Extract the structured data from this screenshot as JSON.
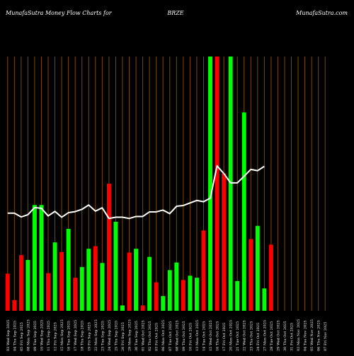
{
  "header": {
    "left": "MunafaSutra  Money Flow  Charts for",
    "center": "BRZE",
    "right": "MunafaSutra.com"
  },
  "colors": {
    "background": "#000000",
    "grid": "#7f4a00",
    "up": "#00ff00",
    "down": "#ff0000",
    "line": "#ffffff",
    "text": "#ffffff"
  },
  "chart_data": {
    "type": "bar",
    "title": "",
    "xlabel": "",
    "ylabel": "",
    "ylim": [
      0,
      100
    ],
    "categories": [
      "07 Fri Nov 2025",
      "06 Thu Nov 2025",
      "05 Wed Nov 2025",
      "04 Tue Nov 2025",
      "03 Mon Nov 2025",
      "31 Fri Oct 2025",
      "30 Thu Oct 2025",
      "29 Wed Oct 2025",
      "28 Tue Oct 2025",
      "27 Mon Oct 2025",
      "24 Fri Oct 2025",
      "23 Thu Oct 2025",
      "22 Wed Oct 2025",
      "21 Tue Oct 2025",
      "20 Mon Oct 2025",
      "17 Fri Oct 2025",
      "16 Thu Oct 2025",
      "15 Wed Oct 2025",
      "14 Tue Oct 2025",
      "13 Mon Oct 2025",
      "10 Fri Oct 2025",
      "09 Thu Oct 2025",
      "08 Wed Oct 2025",
      "07 Tue Oct 2025",
      "06 Mon Oct 2025",
      "03 Fri Oct 2025",
      "02 Thu Oct 2025",
      "01 Wed Oct 2025",
      "30 Tue Sep 2025",
      "29 Mon Sep 2025",
      "26 Fri Sep 2025",
      "25 Thu Sep 2025",
      "24 Wed Sep 2025",
      "23 Tue Sep 2025",
      "22 Mon Sep 2025",
      "19 Fri Sep 2025",
      "18 Thu Sep 2025",
      "17 Wed Sep 2025",
      "16 Tue Sep 2025",
      "15 Mon Sep 2025",
      "12 Fri Sep 2025",
      "11 Thu Sep 2025",
      "10 Wed Sep 2025",
      "09 Tue Sep 2025",
      "08 Mon Sep 2025",
      "05 Fri Sep 2025",
      "04 Thu Sep 2025",
      "03 Wed Sep 2025"
    ],
    "x_tick_labels": [
      "03 Wed Sep 2025",
      "04 Thu Sep 2025",
      "05 Fri Sep 2025",
      "08 Mon Sep 2025",
      "09 Tue Sep 2025",
      "10 Wed Sep 2025",
      "11 Thu Sep 2025",
      "12 Fri Sep 2025",
      "15 Mon Sep 2025",
      "16 Tue Sep 2025",
      "17 Wed Sep 2025",
      "18 Thu Sep 2025",
      "19 Fri Sep 2025",
      "22 Mon Sep 2025",
      "23 Tue Sep 2025",
      "24 Wed Sep 2025",
      "25 Thu Sep 2025",
      "26 Fri Sep 2025",
      "29 Mon Sep 2025",
      "30 Tue Sep 2025",
      "01 Wed Oct 2025",
      "02 Thu Oct 2025",
      "03 Fri Oct 2025",
      "06 Mon Oct 2025",
      "07 Tue Oct 2025",
      "08 Wed Oct 2025",
      "09 Thu Oct 2025",
      "10 Fri Oct 2025",
      "13 Mon Oct 2025",
      "14 Tue Oct 2025",
      "15 Wed Oct 2025",
      "16 Thu Oct 2025",
      "17 Fri Oct 2025",
      "20 Mon Oct 2025",
      "21 Tue Oct 2025",
      "22 Wed Oct 2025",
      "23 Thu Oct 2025",
      "24 Fri Oct 2025",
      "27 Mon Oct 2025",
      "28 Tue Oct 2025",
      "29 Wed Oct 2025",
      "30 Thu Oct 2025",
      "31 Fri Oct 2025",
      "03 Mon Nov 2025",
      "04 Tue Nov 2025",
      "05 Wed Nov 2025",
      "06 Thu Nov 2025",
      "07 Fri Nov 2025"
    ],
    "bar_directions": [
      "down",
      "down",
      "down",
      "up",
      "up",
      "up",
      "down",
      "up",
      "down",
      "up",
      "down",
      "up",
      "up",
      "down",
      "up",
      "down",
      "up",
      "up",
      "down",
      "up",
      "down",
      "up",
      "down",
      "up",
      "up",
      "up",
      "down",
      "up",
      "up",
      "down",
      "up",
      "down",
      "down",
      "up",
      "up",
      "up",
      "down",
      "up",
      "up",
      "down",
      "down",
      "up",
      "down",
      "up",
      "up",
      "down",
      "down",
      "up"
    ],
    "bar_values": [
      14.6,
      4.2,
      21.9,
      20.0,
      41.6,
      41.6,
      14.8,
      26.9,
      23.1,
      32.2,
      13.0,
      17.2,
      24.4,
      25.4,
      18.8,
      50.0,
      35.0,
      2.1,
      22.9,
      24.4,
      2.1,
      21.2,
      11.2,
      5.8,
      16.0,
      19.0,
      12.1,
      13.8,
      13.0,
      31.6,
      100.0,
      100.0,
      54.0,
      100.0,
      11.7,
      78.0,
      28.2,
      33.4,
      8.8,
      26.0,
      0,
      0,
      0,
      0,
      0,
      0,
      0,
      0
    ],
    "line_values": [
      38.4,
      38.4,
      36.9,
      37.8,
      40.6,
      40.3,
      37.3,
      39.1,
      36.8,
      38.6,
      39.0,
      39.9,
      41.6,
      39.2,
      40.5,
      36.3,
      36.8,
      36.8,
      36.3,
      37.1,
      37.1,
      38.9,
      38.9,
      39.6,
      38.2,
      41.1,
      41.4,
      42.4,
      43.4,
      42.9,
      44.3,
      57.0,
      54.0,
      50.3,
      50.3,
      52.9,
      55.6,
      55.1,
      56.8
    ]
  }
}
